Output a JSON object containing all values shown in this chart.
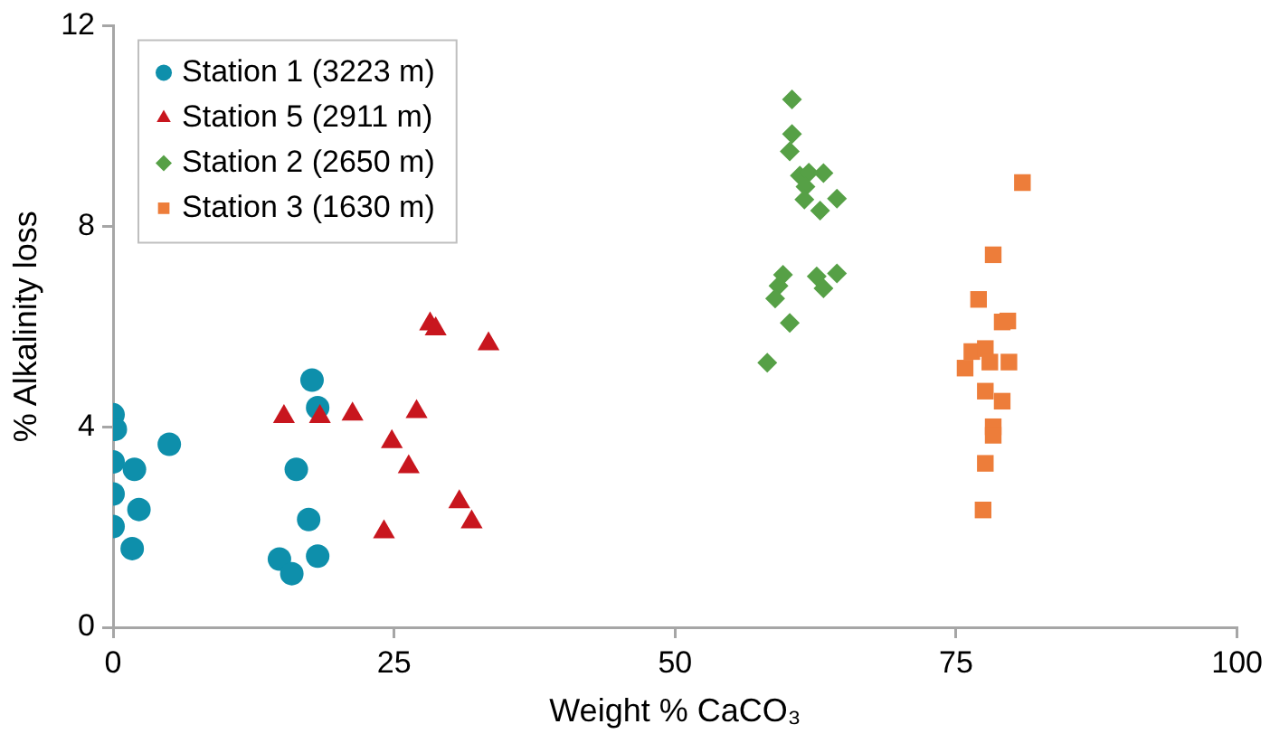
{
  "chart_data": {
    "type": "scatter",
    "xlabel": "Weight % CaCO₃",
    "ylabel": "% Alkalinity loss",
    "xlim": [
      0,
      100
    ],
    "xticks": [
      0,
      25,
      50,
      75,
      100
    ],
    "ylim": [
      0,
      12
    ],
    "yticks": [
      0,
      4,
      8,
      12
    ],
    "grid": false,
    "legend": "top left",
    "series": [
      {
        "name": "Station 1 (3223 m)",
        "color": "#0e8fab",
        "marker": "circle",
        "x": [
          0,
          0.2,
          5.0,
          0,
          1.9,
          0,
          2.3,
          0,
          1.7,
          17.7,
          18.2,
          16.3,
          17.4,
          14.8,
          15.9,
          18.2
        ],
        "values": [
          4.24,
          3.95,
          3.65,
          3.3,
          3.15,
          2.66,
          2.35,
          2.01,
          1.57,
          4.93,
          4.38,
          3.15,
          2.15,
          1.36,
          1.07,
          1.42
        ]
      },
      {
        "name": "Station 5 (2911 m)",
        "color": "#c8161e",
        "marker": "triangle",
        "x": [
          15.2,
          18.4,
          21.3,
          27,
          24.8,
          26.3,
          30.8,
          31.9,
          24.1,
          28.2,
          28.7,
          33.4
        ],
        "values": [
          4.2,
          4.2,
          4.25,
          4.3,
          3.7,
          3.2,
          2.5,
          2.1,
          1.9,
          6.05,
          5.95,
          5.65
        ]
      },
      {
        "name": "Station 2 (2650 m)",
        "color": "#56a046",
        "marker": "diamond",
        "x": [
          60.4,
          60.4,
          60.2,
          61.1,
          61.9,
          63.2,
          61.6,
          61.5,
          64.4,
          62.9,
          59.6,
          59.2,
          58.9,
          62.6,
          63.2,
          64.4,
          60.2,
          58.2
        ],
        "values": [
          10.53,
          9.84,
          9.49,
          9.01,
          9.07,
          9.06,
          8.79,
          8.53,
          8.55,
          8.31,
          7.03,
          6.81,
          6.56,
          7.0,
          6.76,
          7.06,
          6.07,
          5.28
        ]
      },
      {
        "name": "Station 3 (1630 m)",
        "color": "#ed7d3a",
        "marker": "square",
        "x": [
          80.9,
          78.3,
          77.0,
          79.1,
          79.6,
          76.4,
          77.6,
          75.8,
          78.0,
          79.7,
          77.6,
          79.1,
          78.3,
          78.3,
          77.6,
          77.4
        ],
        "values": [
          8.87,
          7.43,
          6.54,
          6.09,
          6.11,
          5.5,
          5.56,
          5.17,
          5.29,
          5.29,
          4.71,
          4.51,
          4.0,
          3.83,
          3.27,
          2.34
        ]
      }
    ]
  }
}
